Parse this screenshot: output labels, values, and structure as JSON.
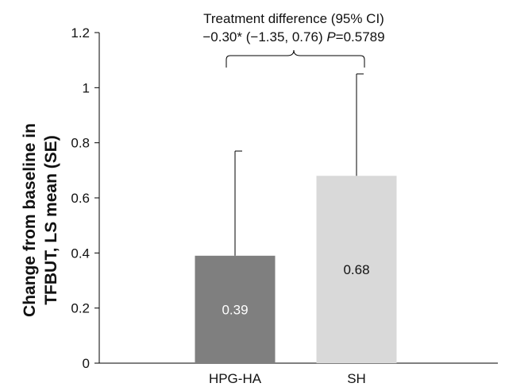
{
  "chart_data": {
    "type": "bar",
    "title": "",
    "xlabel": "",
    "ylabel_lines": [
      "Change from baseline in",
      "TFBUT, LS mean (SE)"
    ],
    "categories": [
      "HPG-HA",
      "SH"
    ],
    "values": [
      0.39,
      0.68
    ],
    "value_labels": [
      "0.39",
      "0.68"
    ],
    "error_upper": [
      0.77,
      1.05
    ],
    "bar_colors": [
      "#7f7f7f",
      "#d9d9d9"
    ],
    "label_colors": [
      "#ffffff",
      "#111111"
    ],
    "ylim": [
      0,
      1.2
    ],
    "yticks": [
      "0",
      "0.2",
      "0.4",
      "0.6",
      "0.8",
      "1",
      "1.2"
    ],
    "grid": false,
    "legend": "none",
    "annotation": {
      "line1": "Treatment difference (95% CI)",
      "line2_prefix": "−0.30* (−1.35, 0.76) ",
      "line2_p": "P",
      "line2_suffix": "=0.5789"
    }
  }
}
